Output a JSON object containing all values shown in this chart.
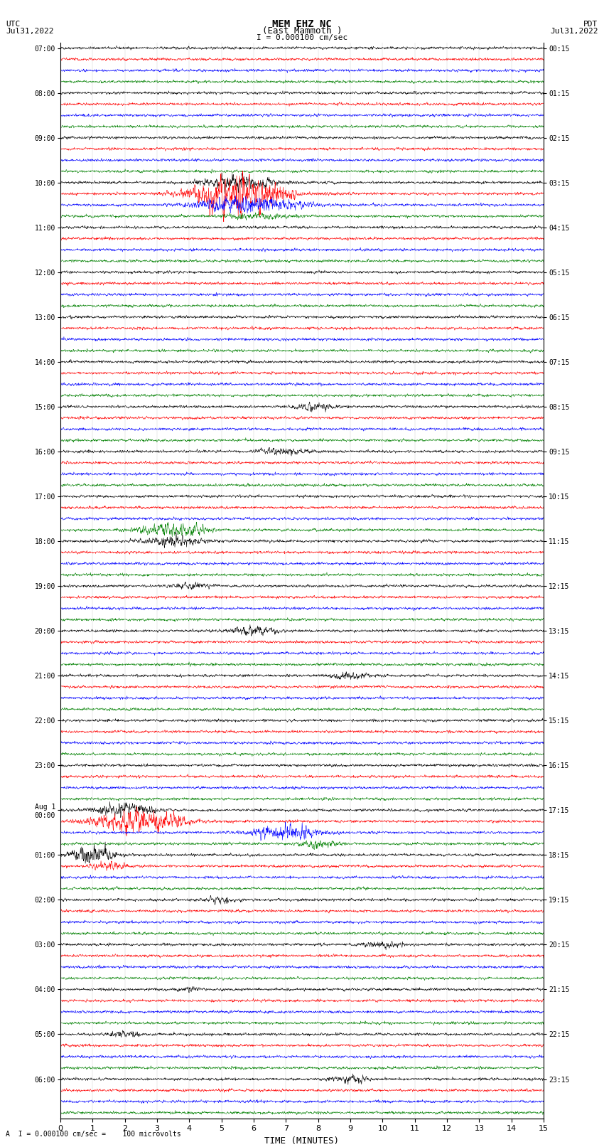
{
  "title_line1": "MEM EHZ NC",
  "title_line2": "(East Mammoth )",
  "scale_label": "I = 0.000100 cm/sec",
  "left_date": "Jul31,2022",
  "right_date": "Jul31,2022",
  "left_label": "UTC",
  "right_label": "PDT",
  "footer_label": "A  I = 0.000100 cm/sec =    100 microvolts",
  "xlabel": "TIME (MINUTES)",
  "bg_color": "#ffffff",
  "trace_colors": [
    "black",
    "red",
    "blue",
    "green"
  ],
  "num_rows": 96,
  "x_ticks": [
    0,
    1,
    2,
    3,
    4,
    5,
    6,
    7,
    8,
    9,
    10,
    11,
    12,
    13,
    14,
    15
  ],
  "left_time_labels": [
    "07:00",
    "",
    "",
    "",
    "08:00",
    "",
    "",
    "",
    "09:00",
    "",
    "",
    "",
    "10:00",
    "",
    "",
    "",
    "11:00",
    "",
    "",
    "",
    "12:00",
    "",
    "",
    "",
    "13:00",
    "",
    "",
    "",
    "14:00",
    "",
    "",
    "",
    "15:00",
    "",
    "",
    "",
    "16:00",
    "",
    "",
    "",
    "17:00",
    "",
    "",
    "",
    "18:00",
    "",
    "",
    "",
    "19:00",
    "",
    "",
    "",
    "20:00",
    "",
    "",
    "",
    "21:00",
    "",
    "",
    "",
    "22:00",
    "",
    "",
    "",
    "23:00",
    "",
    "",
    "",
    "Aug 1\n00:00",
    "",
    "",
    "",
    "01:00",
    "",
    "",
    "",
    "02:00",
    "",
    "",
    "",
    "03:00",
    "",
    "",
    "",
    "04:00",
    "",
    "",
    "",
    "05:00",
    "",
    "",
    "",
    "06:00",
    "",
    "",
    ""
  ],
  "right_time_labels": [
    "00:15",
    "",
    "",
    "",
    "01:15",
    "",
    "",
    "",
    "02:15",
    "",
    "",
    "",
    "03:15",
    "",
    "",
    "",
    "04:15",
    "",
    "",
    "",
    "05:15",
    "",
    "",
    "",
    "06:15",
    "",
    "",
    "",
    "07:15",
    "",
    "",
    "",
    "08:15",
    "",
    "",
    "",
    "09:15",
    "",
    "",
    "",
    "10:15",
    "",
    "",
    "",
    "11:15",
    "",
    "",
    "",
    "12:15",
    "",
    "",
    "",
    "13:15",
    "",
    "",
    "",
    "14:15",
    "",
    "",
    "",
    "15:15",
    "",
    "",
    "",
    "16:15",
    "",
    "",
    "",
    "17:15",
    "",
    "",
    "",
    "18:15",
    "",
    "",
    "",
    "19:15",
    "",
    "",
    "",
    "20:15",
    "",
    "",
    "",
    "21:15",
    "",
    "",
    "",
    "22:15",
    "",
    "",
    "",
    "23:15",
    "",
    "",
    ""
  ]
}
